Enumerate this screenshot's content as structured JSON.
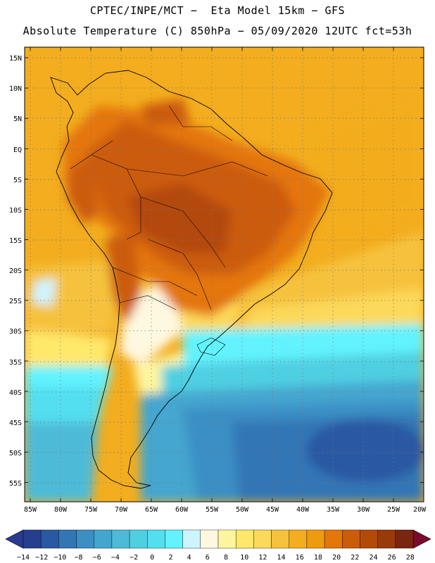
{
  "header": {
    "line1": "CPTEC/INPE/MCT −  Eta Model 15km − GFS",
    "line2": "Absolute Temperature (C) 850hPa − 05/09/2020 12UTC fct=53h"
  },
  "axes": {
    "lat_labels": [
      "15N",
      "10N",
      "5N",
      "EQ",
      "5S",
      "10S",
      "15S",
      "20S",
      "25S",
      "30S",
      "35S",
      "40S",
      "45S",
      "50S",
      "55S"
    ],
    "lon_labels": [
      "85W",
      "80W",
      "75W",
      "70W",
      "65W",
      "60W",
      "55W",
      "50W",
      "45W",
      "40W",
      "35W",
      "30W",
      "25W",
      "20W"
    ]
  },
  "colorbar": {
    "ticks": [
      "−14",
      "−12",
      "−10",
      "−8",
      "−6",
      "−4",
      "−2",
      "0",
      "2",
      "4",
      "6",
      "8",
      "10",
      "12",
      "14",
      "16",
      "18",
      "20",
      "22",
      "24",
      "26",
      "28"
    ],
    "colors": [
      "#253f8f",
      "#2a59a3",
      "#3276b6",
      "#3b8fc4",
      "#44a6cf",
      "#4dbbd8",
      "#4fcfe2",
      "#53dff0",
      "#62f3ff",
      "#cdf5ff",
      "#fff8e0",
      "#fff5a0",
      "#ffe86a",
      "#fcd95a",
      "#f6c23c",
      "#f3ad1e",
      "#ef9b0e",
      "#e4760a",
      "#cc5c08",
      "#b44a07",
      "#993a0b",
      "#7a250f"
    ],
    "under_color": "#2a3a90",
    "over_color": "#7a0a2e"
  }
}
